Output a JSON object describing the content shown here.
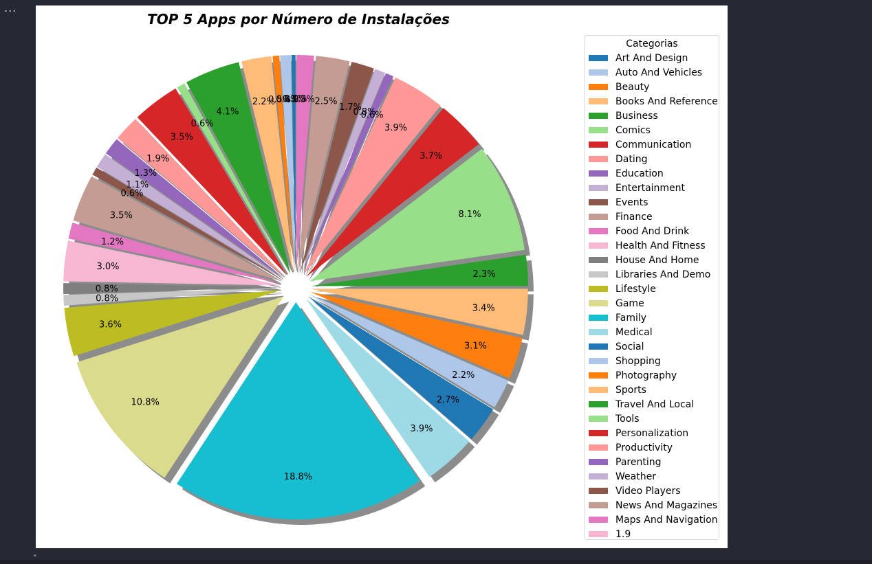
{
  "toolbar": {
    "menu_label": "..."
  },
  "chart_data": {
    "type": "pie",
    "title": "TOP 5 Apps por Número de Instalações",
    "legend_title": "Categorias",
    "legend_position": "right",
    "start_angle_deg": 90,
    "direction": "counterclockwise",
    "shadow": true,
    "explode": true,
    "slices": [
      {
        "label": "Art And Design",
        "value": 0.3,
        "pct_label": "0.3%",
        "color": "#1f77b4"
      },
      {
        "label": "Auto And Vehicles",
        "value": 0.8,
        "pct_label": "0.8%",
        "color": "#aec7e8"
      },
      {
        "label": "Beauty",
        "value": 0.5,
        "pct_label": "0.5%",
        "color": "#ff7f0e"
      },
      {
        "label": "Books And Reference",
        "value": 2.2,
        "pct_label": "2.2%",
        "color": "#ffbb78"
      },
      {
        "label": "Business",
        "value": 4.1,
        "pct_label": "4.1%",
        "color": "#2ca02c"
      },
      {
        "label": "Comics",
        "value": 0.6,
        "pct_label": "0.6%",
        "color": "#98df8a"
      },
      {
        "label": "Communication",
        "value": 3.5,
        "pct_label": "3.5%",
        "color": "#d62728"
      },
      {
        "label": "Dating",
        "value": 1.9,
        "pct_label": "1.9%",
        "color": "#ff9896"
      },
      {
        "label": "Education",
        "value": 1.3,
        "pct_label": "1.3%",
        "color": "#9467bd"
      },
      {
        "label": "Entertainment",
        "value": 1.1,
        "pct_label": "1.1%",
        "color": "#c5b0d5"
      },
      {
        "label": "Events",
        "value": 0.6,
        "pct_label": "0.6%",
        "color": "#8c564b"
      },
      {
        "label": "Finance",
        "value": 3.5,
        "pct_label": "3.5%",
        "color": "#c49c94"
      },
      {
        "label": "Food And Drink",
        "value": 1.2,
        "pct_label": "1.2%",
        "color": "#e377c2"
      },
      {
        "label": "Health And Fitness",
        "value": 3.0,
        "pct_label": "3.0%",
        "color": "#f7b6d2"
      },
      {
        "label": "House And Home",
        "value": 0.8,
        "pct_label": "0.8%",
        "color": "#7f7f7f"
      },
      {
        "label": "Libraries And Demo",
        "value": 0.8,
        "pct_label": "0.8%",
        "color": "#c7c7c7"
      },
      {
        "label": "Lifestyle",
        "value": 3.6,
        "pct_label": "3.6%",
        "color": "#bcbd22"
      },
      {
        "label": "Game",
        "value": 10.8,
        "pct_label": "10.8%",
        "color": "#dbdb8d"
      },
      {
        "label": "Family",
        "value": 18.8,
        "pct_label": "18.8%",
        "color": "#17becf"
      },
      {
        "label": "Medical",
        "value": 3.9,
        "pct_label": "3.9%",
        "color": "#9edae5"
      },
      {
        "label": "Social",
        "value": 2.7,
        "pct_label": "2.7%",
        "color": "#1f77b4"
      },
      {
        "label": "Shopping",
        "value": 2.2,
        "pct_label": "2.2%",
        "color": "#aec7e8"
      },
      {
        "label": "Photography",
        "value": 3.1,
        "pct_label": "3.1%",
        "color": "#ff7f0e"
      },
      {
        "label": "Sports",
        "value": 3.4,
        "pct_label": "3.4%",
        "color": "#ffbb78"
      },
      {
        "label": "Travel And Local",
        "value": 2.3,
        "pct_label": "2.3%",
        "color": "#2ca02c"
      },
      {
        "label": "Tools",
        "value": 8.1,
        "pct_label": "8.1%",
        "color": "#98df8a"
      },
      {
        "label": "Personalization",
        "value": 3.7,
        "pct_label": "3.7%",
        "color": "#d62728"
      },
      {
        "label": "Productivity",
        "value": 3.9,
        "pct_label": "3.9%",
        "color": "#ff9896"
      },
      {
        "label": "Parenting",
        "value": 0.6,
        "pct_label": "0.6%",
        "color": "#9467bd"
      },
      {
        "label": "Weather",
        "value": 0.8,
        "pct_label": "0.8%",
        "color": "#c5b0d5"
      },
      {
        "label": "Video Players",
        "value": 1.7,
        "pct_label": "1.7%",
        "color": "#8c564b"
      },
      {
        "label": "News And Magazines",
        "value": 2.5,
        "pct_label": "2.5%",
        "color": "#c49c94"
      },
      {
        "label": "Maps And Navigation",
        "value": 1.3,
        "pct_label": "1.3%",
        "color": "#e377c2"
      },
      {
        "label": "1.9",
        "value": 0.0,
        "pct_label": "0.0%",
        "color": "#f7b6d2"
      }
    ]
  }
}
